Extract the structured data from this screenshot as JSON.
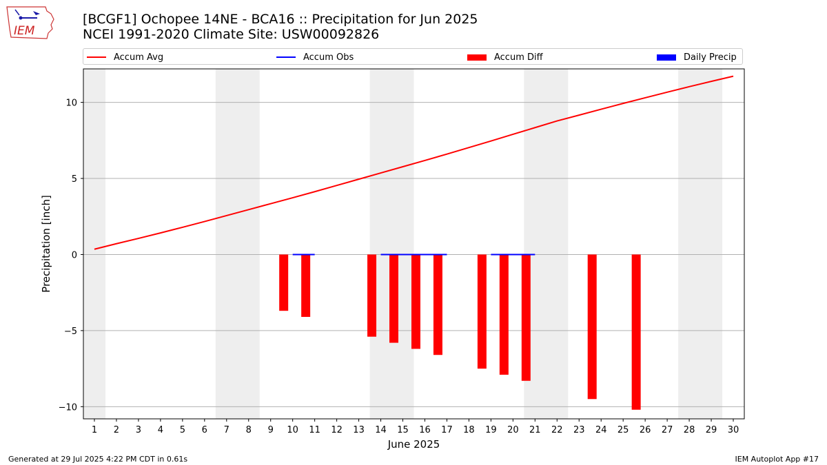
{
  "header": {
    "title_line1": "[BCGF1] Ochopee 14NE - BCA16 :: Precipitation for Jun 2025",
    "title_line2": "NCEI 1991-2020 Climate Site: USW00092826",
    "logo_text": "IEM"
  },
  "legend": [
    {
      "label": "Accum Avg",
      "color": "#ff0000",
      "kind": "line"
    },
    {
      "label": "Accum Obs",
      "color": "#0000ff",
      "kind": "line"
    },
    {
      "label": "Accum Diff",
      "color": "#ff0000",
      "kind": "bar"
    },
    {
      "label": "Daily Precip",
      "color": "#0000ff",
      "kind": "bar"
    }
  ],
  "footer": {
    "left": "Generated at 29 Jul 2025 4:22 PM CDT in 0.61s",
    "right": "IEM Autoplot App #17"
  },
  "chart_data": {
    "type": "bar",
    "title": "[BCGF1] Ochopee 14NE - BCA16 :: Precipitation for Jun 2025",
    "xlabel": "June 2025",
    "ylabel": "Precipitation [inch]",
    "xlim": [
      0.5,
      30.5
    ],
    "ylim": [
      -10.8,
      12.2
    ],
    "yticks": [
      -10,
      -5,
      0,
      5,
      10
    ],
    "ytick_labels": [
      "−10",
      "−5",
      "0",
      "5",
      "10"
    ],
    "grid": "horizontal",
    "legend_position": "top",
    "weekend_shading": [
      [
        0.5,
        1.5
      ],
      [
        6.5,
        8.5
      ],
      [
        13.5,
        15.5
      ],
      [
        20.5,
        22.5
      ],
      [
        27.5,
        29.5
      ]
    ],
    "days": [
      1,
      2,
      3,
      4,
      5,
      6,
      7,
      8,
      9,
      10,
      11,
      12,
      13,
      14,
      15,
      16,
      17,
      18,
      19,
      20,
      21,
      22,
      23,
      24,
      25,
      26,
      27,
      28,
      29,
      30
    ],
    "series": [
      {
        "name": "Accum Avg",
        "kind": "line",
        "color": "#ff0000",
        "values": [
          0.35,
          0.71,
          1.06,
          1.42,
          1.79,
          2.17,
          2.56,
          2.95,
          3.34,
          3.73,
          4.13,
          4.54,
          4.95,
          5.36,
          5.77,
          6.18,
          6.6,
          7.03,
          7.46,
          7.9,
          8.34,
          8.78,
          9.16,
          9.55,
          9.93,
          10.3,
          10.67,
          11.03,
          11.38,
          11.72
        ]
      },
      {
        "name": "Accum Obs",
        "kind": "line",
        "color": "#0000ff",
        "values": [
          0,
          0,
          0,
          0,
          0,
          0,
          0,
          0,
          0,
          0,
          0,
          0,
          0,
          0,
          0,
          0,
          0,
          0,
          0,
          0,
          0,
          0,
          0,
          0,
          0,
          0,
          0,
          0,
          0,
          0
        ],
        "visible_segments": [
          [
            10,
            11
          ],
          [
            14,
            17
          ],
          [
            19,
            21
          ]
        ]
      },
      {
        "name": "Accum Diff",
        "kind": "bar",
        "color": "#ff0000",
        "x": [
          10,
          11,
          14,
          15,
          16,
          17,
          19,
          20,
          21,
          24,
          26
        ],
        "values": [
          -3.7,
          -4.1,
          -5.4,
          -5.8,
          -6.2,
          -6.6,
          -7.5,
          -7.9,
          -8.3,
          -9.5,
          -10.2
        ]
      },
      {
        "name": "Daily Precip",
        "kind": "bar",
        "color": "#0000ff",
        "x": [],
        "values": []
      }
    ]
  }
}
